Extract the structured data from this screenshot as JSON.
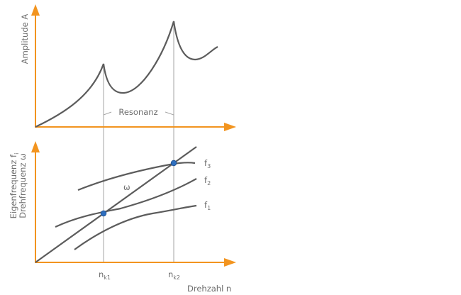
{
  "top_plot": {
    "ylabel": "Amplitude A",
    "annotation": "Resonanz"
  },
  "bottom_plot": {
    "ylabel_line1": {
      "text": "Eigenfrequenz f",
      "sub": "i"
    },
    "ylabel_line2": "Drehfrequenz ω",
    "xlabel": "Drehzahl n",
    "omega_label": "ω",
    "curve_labels": [
      {
        "base": "f",
        "sub": "3"
      },
      {
        "base": "f",
        "sub": "2"
      },
      {
        "base": "f",
        "sub": "1"
      }
    ],
    "tick_labels": [
      {
        "base": "n",
        "sub": "k1"
      },
      {
        "base": "n",
        "sub": "k2"
      }
    ]
  },
  "colors": {
    "axis": "#f2941f",
    "curve": "#5c5c5c",
    "guide": "#a6a6a6",
    "text": "#6e6e6e",
    "marker": "#2f6fbf"
  }
}
